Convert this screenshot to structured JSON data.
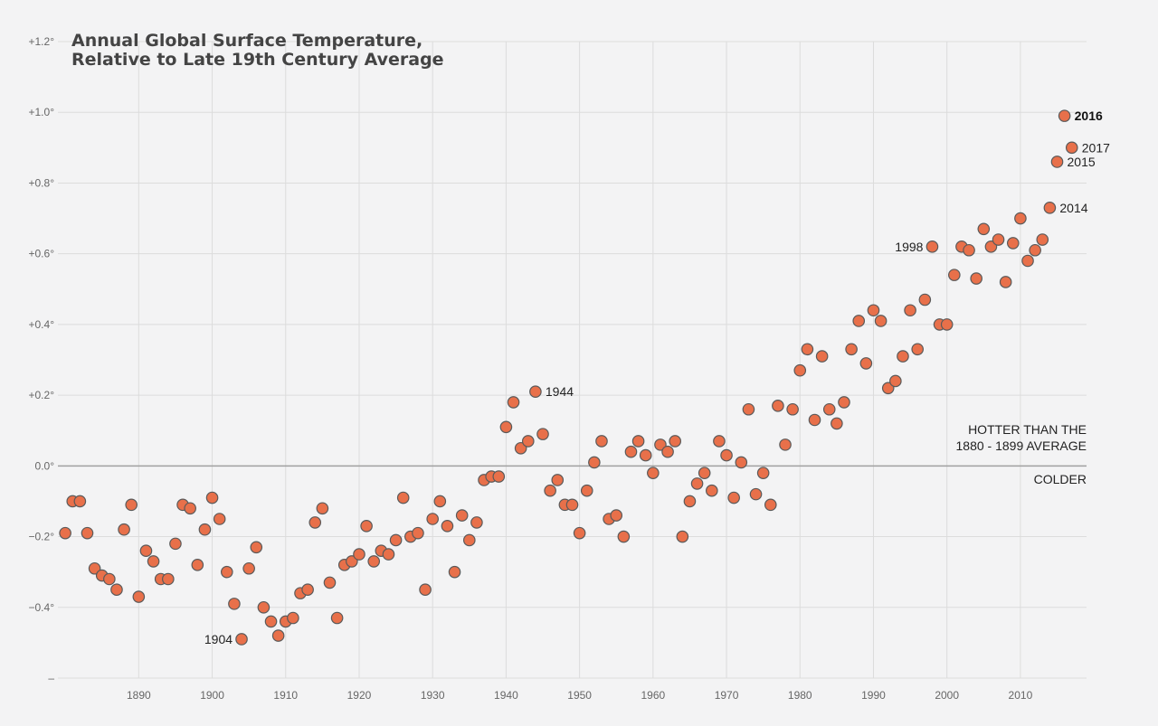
{
  "chart_data": {
    "type": "scatter",
    "title_lines": [
      "Annual Global Surface Temperature,",
      "Relative to Late 19th Century Average"
    ],
    "xlabel": "",
    "ylabel": "",
    "xlim": [
      1879,
      2019
    ],
    "ylim": [
      -0.6,
      1.2
    ],
    "grid": true,
    "y_ticks": [
      {
        "value": 1.2,
        "label": "+1.2°"
      },
      {
        "value": 1.0,
        "label": "+1.0°"
      },
      {
        "value": 0.8,
        "label": "+0.8°"
      },
      {
        "value": 0.6,
        "label": "+0.6°"
      },
      {
        "value": 0.4,
        "label": "+0.4°"
      },
      {
        "value": 0.2,
        "label": "+0.2°"
      },
      {
        "value": 0.0,
        "label": "0.0°"
      },
      {
        "value": -0.2,
        "label": "−0.2°"
      },
      {
        "value": -0.4,
        "label": "−0.4°"
      },
      {
        "value": -0.6,
        "label": "–"
      }
    ],
    "x_ticks": [
      {
        "value": 1890,
        "label": "1890"
      },
      {
        "value": 1900,
        "label": "1900"
      },
      {
        "value": 1910,
        "label": "1910"
      },
      {
        "value": 1920,
        "label": "1920"
      },
      {
        "value": 1930,
        "label": "1930"
      },
      {
        "value": 1940,
        "label": "1940"
      },
      {
        "value": 1950,
        "label": "1950"
      },
      {
        "value": 1960,
        "label": "1960"
      },
      {
        "value": 1970,
        "label": "1970"
      },
      {
        "value": 1980,
        "label": "1980"
      },
      {
        "value": 1990,
        "label": "1990"
      },
      {
        "value": 2000,
        "label": "2000"
      },
      {
        "value": 2010,
        "label": "2010"
      }
    ],
    "series": [
      {
        "color": "#e8704a",
        "x": [
          1880,
          1881,
          1882,
          1883,
          1884,
          1885,
          1886,
          1887,
          1888,
          1889,
          1890,
          1891,
          1892,
          1893,
          1894,
          1895,
          1896,
          1897,
          1898,
          1899,
          1900,
          1901,
          1902,
          1903,
          1904,
          1905,
          1906,
          1907,
          1908,
          1909,
          1910,
          1911,
          1912,
          1913,
          1914,
          1915,
          1916,
          1917,
          1918,
          1919,
          1920,
          1921,
          1922,
          1923,
          1924,
          1925,
          1926,
          1927,
          1928,
          1929,
          1930,
          1931,
          1932,
          1933,
          1934,
          1935,
          1936,
          1937,
          1938,
          1939,
          1940,
          1941,
          1942,
          1943,
          1944,
          1945,
          1946,
          1947,
          1948,
          1949,
          1950,
          1951,
          1952,
          1953,
          1954,
          1955,
          1956,
          1957,
          1958,
          1959,
          1960,
          1961,
          1962,
          1963,
          1964,
          1965,
          1966,
          1967,
          1968,
          1969,
          1970,
          1971,
          1972,
          1973,
          1974,
          1975,
          1976,
          1977,
          1978,
          1979,
          1980,
          1981,
          1982,
          1983,
          1984,
          1985,
          1986,
          1987,
          1988,
          1989,
          1990,
          1991,
          1992,
          1993,
          1994,
          1995,
          1996,
          1997,
          1998,
          1999,
          2000,
          2001,
          2002,
          2003,
          2004,
          2005,
          2006,
          2007,
          2008,
          2009,
          2010,
          2011,
          2012,
          2013,
          2014,
          2015,
          2016,
          2017
        ],
        "y": [
          -0.19,
          -0.1,
          -0.1,
          -0.19,
          -0.29,
          -0.31,
          -0.32,
          -0.35,
          -0.18,
          -0.11,
          -0.37,
          -0.24,
          -0.27,
          -0.32,
          -0.32,
          -0.22,
          -0.11,
          -0.12,
          -0.28,
          -0.18,
          -0.09,
          -0.15,
          -0.3,
          -0.39,
          -0.49,
          -0.29,
          -0.23,
          -0.4,
          -0.44,
          -0.48,
          -0.44,
          -0.43,
          -0.36,
          -0.35,
          -0.16,
          -0.12,
          -0.33,
          -0.43,
          -0.28,
          -0.27,
          -0.25,
          -0.17,
          -0.27,
          -0.24,
          -0.25,
          -0.21,
          -0.09,
          -0.2,
          -0.19,
          -0.35,
          -0.15,
          -0.1,
          -0.17,
          -0.3,
          -0.14,
          -0.21,
          -0.16,
          -0.04,
          -0.03,
          -0.03,
          0.11,
          0.18,
          0.05,
          0.07,
          0.21,
          0.09,
          -0.07,
          -0.04,
          -0.11,
          -0.11,
          -0.19,
          -0.07,
          0.01,
          0.07,
          -0.15,
          -0.14,
          -0.2,
          0.04,
          0.07,
          0.03,
          -0.02,
          0.06,
          0.04,
          0.07,
          -0.2,
          -0.1,
          -0.05,
          -0.02,
          -0.07,
          0.07,
          0.03,
          -0.09,
          0.01,
          0.16,
          -0.08,
          -0.02,
          -0.11,
          0.17,
          0.06,
          0.16,
          0.27,
          0.33,
          0.13,
          0.31,
          0.16,
          0.12,
          0.18,
          0.33,
          0.41,
          0.29,
          0.44,
          0.41,
          0.22,
          0.24,
          0.31,
          0.44,
          0.33,
          0.47,
          0.62,
          0.4,
          0.4,
          0.54,
          0.62,
          0.61,
          0.53,
          0.67,
          0.62,
          0.64,
          0.52,
          0.63,
          0.7,
          0.58,
          0.61,
          0.64,
          0.73,
          0.86,
          0.99,
          0.9
        ]
      }
    ],
    "annotations": [
      {
        "year": 1904,
        "text": "1904",
        "side": "left",
        "bold": false
      },
      {
        "year": 1944,
        "text": "1944",
        "side": "right",
        "bold": false
      },
      {
        "year": 1998,
        "text": "1998",
        "side": "left",
        "bold": false
      },
      {
        "year": 2014,
        "text": "2014",
        "side": "right",
        "bold": false
      },
      {
        "year": 2015,
        "text": "2015",
        "side": "right",
        "bold": false
      },
      {
        "year": 2016,
        "text": "2016",
        "side": "right",
        "bold": true
      },
      {
        "year": 2017,
        "text": "2017",
        "side": "right",
        "bold": false
      }
    ],
    "zero_line_notes": {
      "above": [
        "HOTTER THAN THE",
        "1880 - 1899 AVERAGE"
      ],
      "below": "COLDER"
    },
    "colors": {
      "background": "#f3f3f4",
      "grid": "#dcdcdc",
      "zero_line": "#a0a0a0",
      "marker_fill": "#e8704a",
      "marker_stroke": "#5a5a5a"
    }
  }
}
